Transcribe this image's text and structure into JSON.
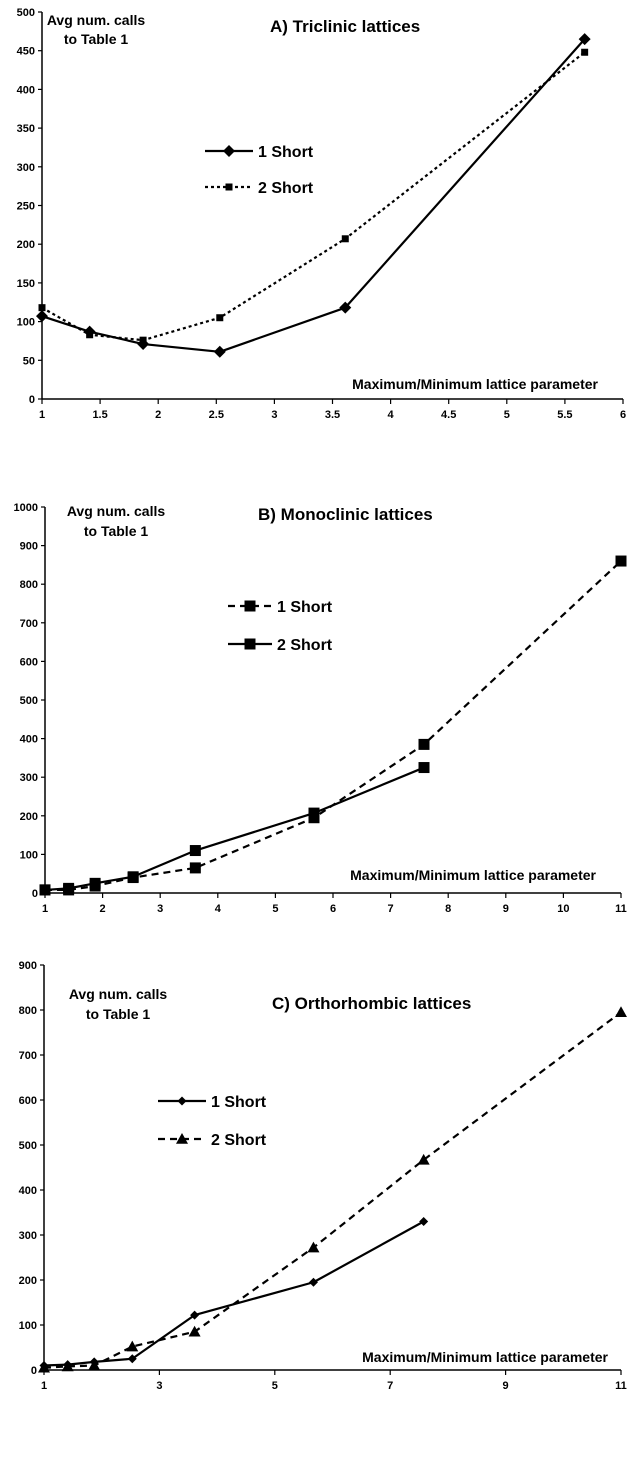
{
  "chart_data": [
    {
      "type": "line",
      "title": "A) Triclinic lattices",
      "ylabel": [
        "Avg num. calls",
        "to Table 1"
      ],
      "xlabel": "Maximum/Minimum lattice parameter",
      "xlim": [
        1,
        6
      ],
      "ylim": [
        0,
        500
      ],
      "xticks": [
        "1",
        "1.5",
        "2",
        "2.5",
        "3",
        "3.5",
        "4",
        "4.5",
        "5",
        "5.5",
        "6"
      ],
      "yticks": [
        "0",
        "50",
        "100",
        "150",
        "200",
        "250",
        "300",
        "350",
        "400",
        "450",
        "500"
      ],
      "grid": false,
      "legend_position": "upper-left",
      "series": [
        {
          "name": "1 Short",
          "style": "solid",
          "marker": "diamond",
          "x": [
            1.0,
            1.41,
            1.87,
            2.53,
            3.61,
            5.67
          ],
          "y": [
            107,
            87,
            71,
            61,
            118,
            465
          ]
        },
        {
          "name": "2 Short",
          "style": "dotted",
          "marker": "small-square",
          "x": [
            1.0,
            1.41,
            1.87,
            2.53,
            3.61,
            5.67
          ],
          "y": [
            118,
            83,
            76,
            105,
            207,
            448
          ]
        }
      ]
    },
    {
      "type": "line",
      "title": "B) Monoclinic lattices",
      "ylabel": [
        "Avg num. calls",
        "to Table 1"
      ],
      "xlabel": "Maximum/Minimum lattice parameter",
      "xlim": [
        1,
        11
      ],
      "ylim": [
        0,
        1000
      ],
      "xticks": [
        "1",
        "2",
        "3",
        "4",
        "5",
        "6",
        "7",
        "8",
        "9",
        "10",
        "11"
      ],
      "yticks": [
        "0",
        "100",
        "200",
        "300",
        "400",
        "500",
        "600",
        "700",
        "800",
        "900",
        "1000"
      ],
      "grid": false,
      "legend_position": "upper-left",
      "series": [
        {
          "name": "1 Short",
          "style": "dashed",
          "marker": "square",
          "x": [
            1.0,
            1.41,
            1.87,
            2.53,
            3.61,
            5.67,
            7.58,
            11.0
          ],
          "y": [
            8,
            8,
            18,
            40,
            65,
            195,
            385,
            860
          ]
        },
        {
          "name": "2 Short",
          "style": "solid",
          "marker": "square",
          "x": [
            1.0,
            1.41,
            1.87,
            2.53,
            3.61,
            5.67,
            7.58
          ],
          "y": [
            8,
            12,
            25,
            42,
            110,
            207,
            325
          ]
        }
      ]
    },
    {
      "type": "line",
      "title": "C) Orthorhombic  lattices",
      "ylabel": [
        "Avg num. calls",
        "to Table 1"
      ],
      "xlabel": "Maximum/Minimum lattice parameter",
      "xlim": [
        1,
        11
      ],
      "ylim": [
        0,
        900
      ],
      "xticks": [
        "1",
        "3",
        "5",
        "7",
        "9",
        "11"
      ],
      "yticks": [
        "0",
        "100",
        "200",
        "300",
        "400",
        "500",
        "600",
        "700",
        "800",
        "900"
      ],
      "grid": false,
      "legend_position": "upper-left",
      "series": [
        {
          "name": "1 Short",
          "style": "solid",
          "marker": "small-diamond",
          "x": [
            1.0,
            1.41,
            1.87,
            2.53,
            3.61,
            5.67,
            7.58
          ],
          "y": [
            10,
            12,
            18,
            25,
            122,
            195,
            330
          ]
        },
        {
          "name": "2 Short",
          "style": "dashed",
          "marker": "triangle",
          "x": [
            1.0,
            1.41,
            1.87,
            2.53,
            3.61,
            5.67,
            7.58,
            11.0
          ],
          "y": [
            5,
            8,
            10,
            52,
            85,
            272,
            467,
            795
          ]
        }
      ]
    }
  ]
}
